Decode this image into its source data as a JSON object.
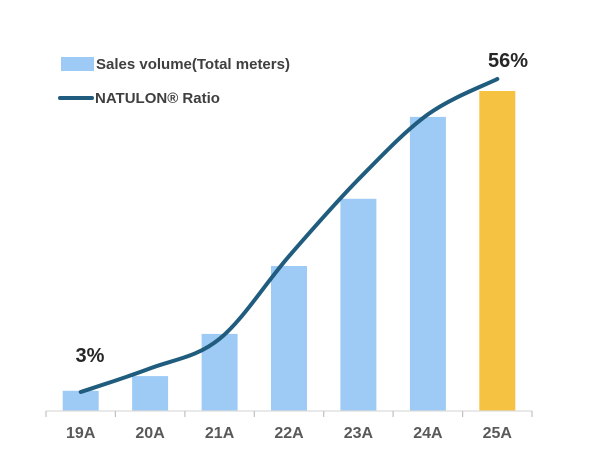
{
  "chart_data": {
    "type": "combo-bar-line",
    "categories": [
      "19A",
      "20A",
      "21A",
      "22A",
      "23A",
      "24A",
      "25A"
    ],
    "series": [
      {
        "name": "Sales volume(Total meters)",
        "type": "bar",
        "values_relative": [
          6.3,
          10.9,
          24.1,
          45.3,
          66.3,
          91.9,
          100
        ],
        "note": "no value axis shown; bar heights estimated relative to 25A = 100",
        "colors": [
          "#9ECAF6",
          "#9ECAF6",
          "#9ECAF6",
          "#9ECAF6",
          "#9ECAF6",
          "#9ECAF6",
          "#F5C242"
        ]
      },
      {
        "name": "NATULON® Ratio",
        "type": "line",
        "values_percent": [
          3,
          7,
          12,
          26,
          39,
          50,
          56
        ],
        "color": "#1F5C7E",
        "labeled_points": {
          "19A": "3%",
          "25A": "56%"
        }
      }
    ],
    "legend_position": "top-left",
    "grid": false,
    "value_axis_visible": false,
    "xlabel": "",
    "ylabel": ""
  },
  "legend": {
    "items": [
      {
        "label": "Sales volume(Total meters)",
        "swatch": "bar"
      },
      {
        "label": "NATULON® Ratio",
        "swatch": "line"
      }
    ]
  },
  "annotations": {
    "start_label": "3%",
    "end_label": "56%"
  },
  "colors": {
    "bar_blue": "#9ECAF6",
    "bar_highlight": "#F5C242",
    "line": "#1F5C7E",
    "axis": "#DCDCDC",
    "tick": "#C0C0C0",
    "axis_label": "#595959",
    "legend_text": "#3F3F3F",
    "annotation_text": "#262626"
  }
}
